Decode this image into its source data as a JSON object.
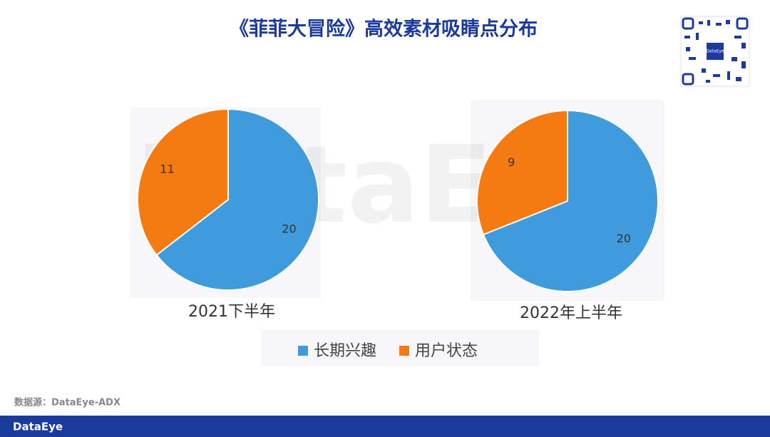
{
  "title": "《菲菲大冒险》高效素材吸睛点分布",
  "watermark": "DataEye",
  "brand": "DataEye",
  "source": "数据源：DataEye-ADX",
  "chart_data": [
    {
      "type": "pie",
      "title": "2021下半年",
      "categories": [
        "长期兴趣",
        "用户状态"
      ],
      "values": [
        20,
        11
      ],
      "colors": [
        "#3f9bdb",
        "#f57a12"
      ]
    },
    {
      "type": "pie",
      "title": "2022年上半年",
      "categories": [
        "长期兴趣",
        "用户状态"
      ],
      "values": [
        20,
        9
      ],
      "colors": [
        "#3f9bdb",
        "#f57a12"
      ]
    }
  ]
}
